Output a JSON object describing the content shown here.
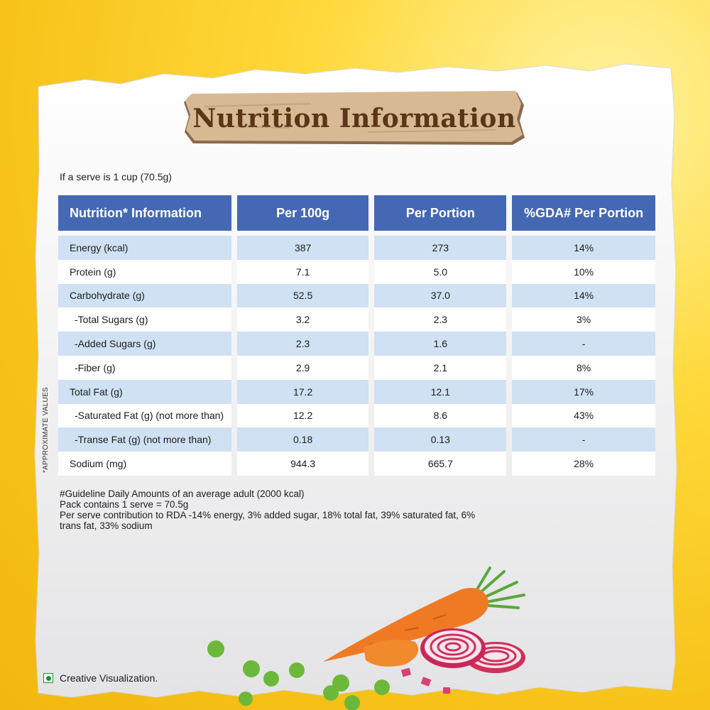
{
  "header": {
    "title": "Nutrition Information"
  },
  "serve_text": "If a serve is 1 cup (70.5g)",
  "side_note": "*APPROXIMATE VALUES",
  "table": {
    "columns": [
      "Nutrition* Information",
      "Per 100g",
      "Per Portion",
      "%GDA# Per Portion"
    ],
    "rows": [
      {
        "label": "Energy (kcal)",
        "per100": "387",
        "portion": "273",
        "gda": "14%",
        "sub": false
      },
      {
        "label": "Protein (g)",
        "per100": "7.1",
        "portion": "5.0",
        "gda": "10%",
        "sub": false
      },
      {
        "label": "Carbohydrate (g)",
        "per100": "52.5",
        "portion": "37.0",
        "gda": "14%",
        "sub": false
      },
      {
        "label": "-Total Sugars (g)",
        "per100": "3.2",
        "portion": "2.3",
        "gda": "3%",
        "sub": true
      },
      {
        "label": "-Added Sugars (g)",
        "per100": "2.3",
        "portion": "1.6",
        "gda": "-",
        "sub": true
      },
      {
        "label": "-Fiber (g)",
        "per100": "2.9",
        "portion": "2.1",
        "gda": "8%",
        "sub": true
      },
      {
        "label": "Total Fat (g)",
        "per100": "17.2",
        "portion": "12.1",
        "gda": "17%",
        "sub": false
      },
      {
        "label": "-Saturated Fat (g) (not more than)",
        "per100": "12.2",
        "portion": "8.6",
        "gda": "43%",
        "sub": true
      },
      {
        "label": "-Transe Fat (g) (not more than)",
        "per100": "0.18",
        "portion": "0.13",
        "gda": "-",
        "sub": true
      },
      {
        "label": "Sodium (mg)",
        "per100": "944.3",
        "portion": "665.7",
        "gda": "28%",
        "sub": false
      }
    ]
  },
  "footnotes": {
    "line1": "#Guideline Daily Amounts of an average adult (2000 kcal)",
    "line2": "Pack contains 1 serve = 70.5g",
    "line3": "Per serve contribution to RDA -14% energy, 3% added sugar, 18% total fat, 39% saturated fat, 6% trans fat, 33% sodium"
  },
  "creative_note": "Creative Visualization.",
  "colors": {
    "header_blue": "#4468b3",
    "row_blue": "#cfe1f3",
    "banner_wood": "#d7b994",
    "title_brown": "#5a3516",
    "background_yellow": "#f7c31a",
    "veg_green": "#1a8c2e"
  }
}
